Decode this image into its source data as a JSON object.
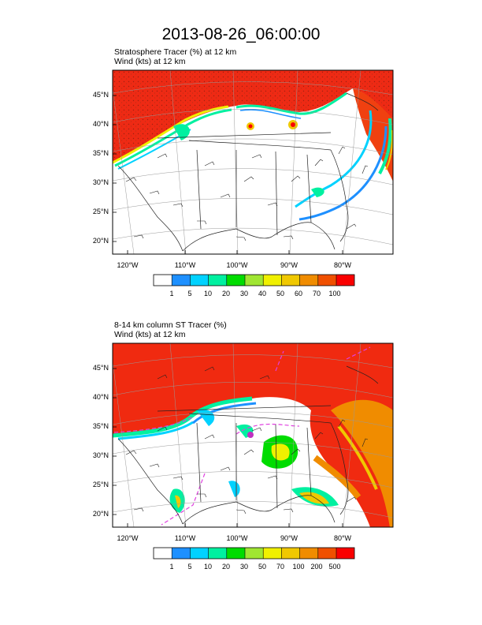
{
  "title": "2013-08-26_06:00:00",
  "panels": [
    {
      "field_line": "Stratosphere Tracer   (%)     at   12 km",
      "wind_line": "Wind   (kts)     at   12 km",
      "lat_labels": [
        "45°N",
        "40°N",
        "35°N",
        "30°N",
        "25°N",
        "20°N"
      ],
      "lon_labels": [
        "120°W",
        "110°W",
        "100°W",
        "90°W",
        "80°W"
      ],
      "colorbar_labels": [
        "1",
        "5",
        "10",
        "20",
        "30",
        "40",
        "50",
        "60",
        "70",
        "100"
      ]
    },
    {
      "field_line": "8-14 km column ST Tracer   (%)",
      "wind_line": "Wind   (kts)     at   12 km",
      "lat_labels": [
        "45°N",
        "40°N",
        "35°N",
        "30°N",
        "25°N",
        "20°N"
      ],
      "lon_labels": [
        "120°W",
        "110°W",
        "100°W",
        "90°W",
        "80°W"
      ],
      "colorbar_labels": [
        "1",
        "5",
        "10",
        "20",
        "30",
        "50",
        "70",
        "100",
        "200",
        "500"
      ]
    }
  ],
  "colorbar_colors": [
    "#ffffff",
    "#1e90ff",
    "#00d2ff",
    "#00f0a0",
    "#00dc00",
    "#a0e632",
    "#f0f000",
    "#f0c800",
    "#f08c00",
    "#f05000",
    "#fa0000"
  ]
}
